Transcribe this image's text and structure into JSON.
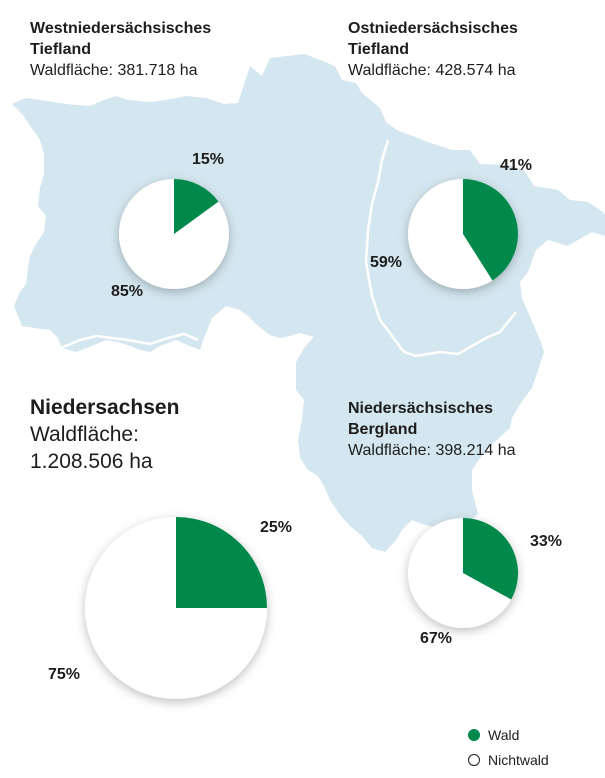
{
  "colors": {
    "wald": "#00894a",
    "nichtwald": "#ffffff",
    "land": "#d4e6ef",
    "border": "#ffffff"
  },
  "regions": {
    "west": {
      "title_line1": "Westniedersächsisches",
      "title_line2": "Tiefland",
      "area": "Waldfläche: 381.718 ha"
    },
    "ost": {
      "title_line1": "Ostniedersächsisches",
      "title_line2": "Tiefland",
      "area": "Waldfläche: 428.574 ha"
    },
    "berg": {
      "title_line1": "Niedersächsisches",
      "title_line2": "Bergland",
      "area": "Waldfläche: 398.214 ha"
    },
    "nds": {
      "title": "Niedersachsen",
      "area_label": "Waldfläche:",
      "area_value": "1.208.506 ha"
    }
  },
  "chart_data": [
    {
      "type": "pie",
      "region": "Westniedersächsisches Tiefland",
      "categories": [
        "Wald",
        "Nichtwald"
      ],
      "values": [
        15,
        85
      ],
      "labels": [
        "15%",
        "85%"
      ]
    },
    {
      "type": "pie",
      "region": "Ostniedersächsisches Tiefland",
      "categories": [
        "Wald",
        "Nichtwald"
      ],
      "values": [
        41,
        59
      ],
      "labels": [
        "41%",
        "59%"
      ]
    },
    {
      "type": "pie",
      "region": "Niedersächsisches Bergland",
      "categories": [
        "Wald",
        "Nichtwald"
      ],
      "values": [
        33,
        67
      ],
      "labels": [
        "33%",
        "67%"
      ]
    },
    {
      "type": "pie",
      "region": "Niedersachsen",
      "categories": [
        "Wald",
        "Nichtwald"
      ],
      "values": [
        25,
        75
      ],
      "labels": [
        "25%",
        "75%"
      ]
    }
  ],
  "legend": {
    "wald": "Wald",
    "nichtwald": "Nichtwald"
  }
}
